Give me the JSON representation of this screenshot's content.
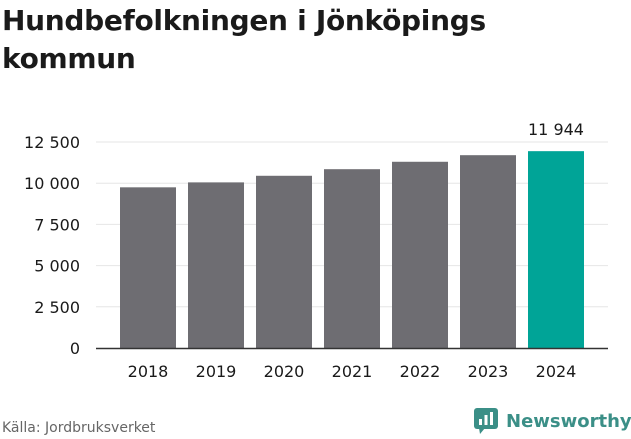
{
  "title": "Hundbefolkningen i Jönköpings kommun",
  "source": "Källa: Jordbruksverket",
  "brand": {
    "name": "Newsworthy",
    "icon": "bar-chart-bubble-icon"
  },
  "colors": {
    "bar": "#6e6d72",
    "highlight": "#00a497",
    "brand": "#3b8f87",
    "grid": "#e6e6e6",
    "text": "#1a1a1a"
  },
  "chart_data": {
    "type": "bar",
    "categories": [
      "2018",
      "2019",
      "2020",
      "2021",
      "2022",
      "2023",
      "2024"
    ],
    "values": [
      9750,
      10050,
      10450,
      10850,
      11300,
      11700,
      11944
    ],
    "ylim": [
      0,
      12500
    ],
    "y_ticks": [
      0,
      2500,
      5000,
      7500,
      10000,
      12500
    ],
    "y_tick_labels": [
      "0",
      "2 500",
      "5 000",
      "7 500",
      "10 000",
      "12 500"
    ],
    "grid": true,
    "highlight_index": 6,
    "annotation": {
      "category": "2024",
      "text": "11 944"
    },
    "xlabel": "",
    "ylabel": ""
  }
}
